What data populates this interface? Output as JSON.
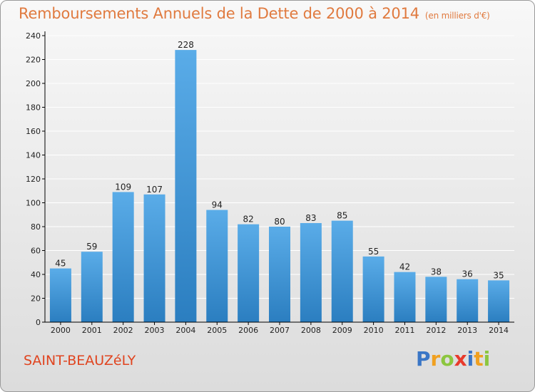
{
  "header": {
    "title": "Remboursements Annuels de la Dette de 2000 à 2014",
    "unit": "(en milliers d'€)"
  },
  "footer": {
    "commune": "SAINT-BEAUZéLY",
    "logo": [
      "P",
      "r",
      "o",
      "x",
      "i",
      "t",
      "i"
    ],
    "logo_colors": [
      "#3a76c6",
      "#f0a020",
      "#8cc63f",
      "#e83a2c",
      "#3a76c6",
      "#f0a020",
      "#8cc63f"
    ]
  },
  "colors": {
    "bar_light": "#5aace8",
    "bar_dark": "#2b7ec0",
    "axis": "#000000",
    "grid": "#ffffff",
    "title": "#e07a3f",
    "commune": "#e0441f"
  },
  "chart_data": {
    "type": "bar",
    "title": "Remboursements Annuels de la Dette de 2000 à 2014",
    "subtitle": "(en milliers d'€)",
    "xlabel": "",
    "ylabel": "",
    "categories": [
      "2000",
      "2001",
      "2002",
      "2003",
      "2004",
      "2005",
      "2006",
      "2007",
      "2008",
      "2009",
      "2010",
      "2011",
      "2012",
      "2013",
      "2014"
    ],
    "values": [
      45,
      59,
      109,
      107,
      228,
      94,
      82,
      80,
      83,
      85,
      55,
      42,
      38,
      36,
      35
    ],
    "ylim": [
      0,
      240
    ],
    "yticks": [
      0,
      20,
      40,
      60,
      80,
      100,
      120,
      140,
      160,
      180,
      200,
      220,
      240
    ],
    "grid": true,
    "data_labels": true
  }
}
